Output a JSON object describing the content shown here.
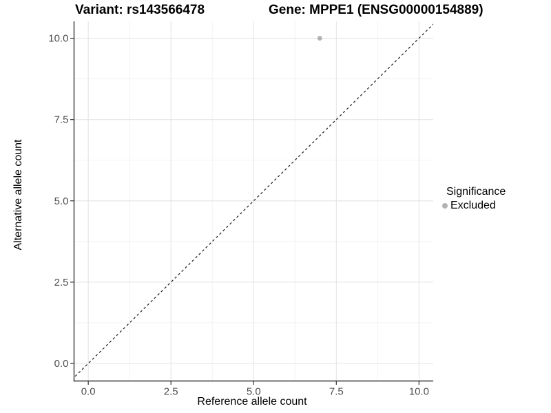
{
  "title": {
    "left": "Variant: rs143566478",
    "right": "Gene: MPPE1 (ENSG00000154889)"
  },
  "legend": {
    "title": "Significance",
    "items": [
      {
        "label": "Excluded",
        "color": "#b2b2b2"
      }
    ]
  },
  "colors": {
    "background": "#ffffff",
    "grid_major": "#e4e4e4",
    "grid_minor": "#f1f1f1",
    "axis_line": "#333333",
    "tick_mark": "#333333",
    "tick_label": "#4d4d4d",
    "reference_line": "#1a1a1a",
    "point": "#b2b2b2"
  },
  "chart_data": {
    "type": "scatter",
    "title": "Variant: rs143566478    Gene: MPPE1 (ENSG00000154889)",
    "xlabel": "Reference allele count",
    "ylabel": "Alternative allele count",
    "x_ticks": [
      0.0,
      2.5,
      5.0,
      7.5,
      10.0
    ],
    "y_ticks": [
      0.0,
      2.5,
      5.0,
      7.5,
      10.0
    ],
    "x_minor_ticks": [
      1.25,
      3.75,
      6.25,
      8.75
    ],
    "y_minor_ticks": [
      1.25,
      3.75,
      6.25,
      8.75
    ],
    "xlim": [
      -0.43,
      10.43
    ],
    "ylim": [
      -0.54,
      10.52
    ],
    "grid": "major+minor",
    "legend_position": "right",
    "series": [
      {
        "name": "Excluded",
        "color": "#b2b2b2",
        "points": [
          {
            "x": 7,
            "y": 10
          }
        ]
      }
    ],
    "reference_line": {
      "type": "identity",
      "slope": 1,
      "intercept": 0,
      "style": "dashed"
    }
  }
}
